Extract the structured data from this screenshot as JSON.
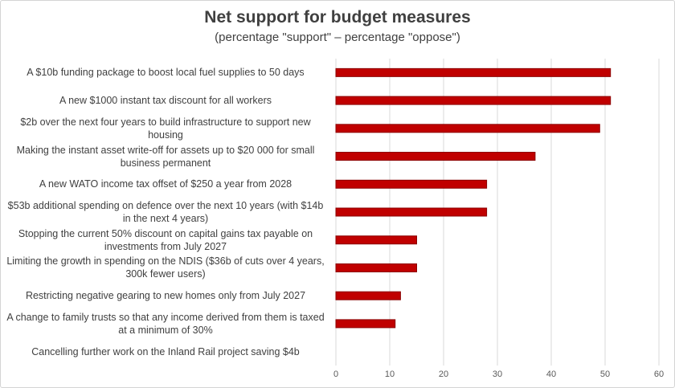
{
  "chart_data": {
    "type": "bar",
    "orientation": "horizontal",
    "title": "Net support for budget measures",
    "subtitle": "(percentage \"support\" – percentage \"oppose\")",
    "xlabel": "",
    "ylabel": "",
    "xlim": [
      0,
      60
    ],
    "xticks": [
      0,
      10,
      20,
      30,
      40,
      50,
      60
    ],
    "grid": true,
    "bar_color": "#c00000",
    "categories": [
      "A $10b funding package to boost local fuel supplies to 50 days",
      "A new $1000 instant tax discount for all workers",
      "$2b over the next four years to build infrastructure to support new housing",
      "Making the instant asset write-off for assets up to $20 000 for small business permanent",
      "A new WATO income tax offset of $250 a year from 2028",
      "$53b additional spending on defence over the next 10 years (with $14b in the next 4 years)",
      "Stopping the current 50% discount on capital gains tax payable on investments from July 2027",
      "Limiting the growth in spending on the NDIS ($36b of cuts over 4 years, 300k fewer users)",
      "Restricting negative gearing to new homes only from July 2027",
      "A change to family trusts so that any income derived from them is taxed at a minimum of 30%",
      "Cancelling further work on the Inland Rail project saving $4b"
    ],
    "values": [
      51,
      51,
      49,
      37,
      28,
      28,
      15,
      15,
      12,
      11,
      0
    ]
  }
}
